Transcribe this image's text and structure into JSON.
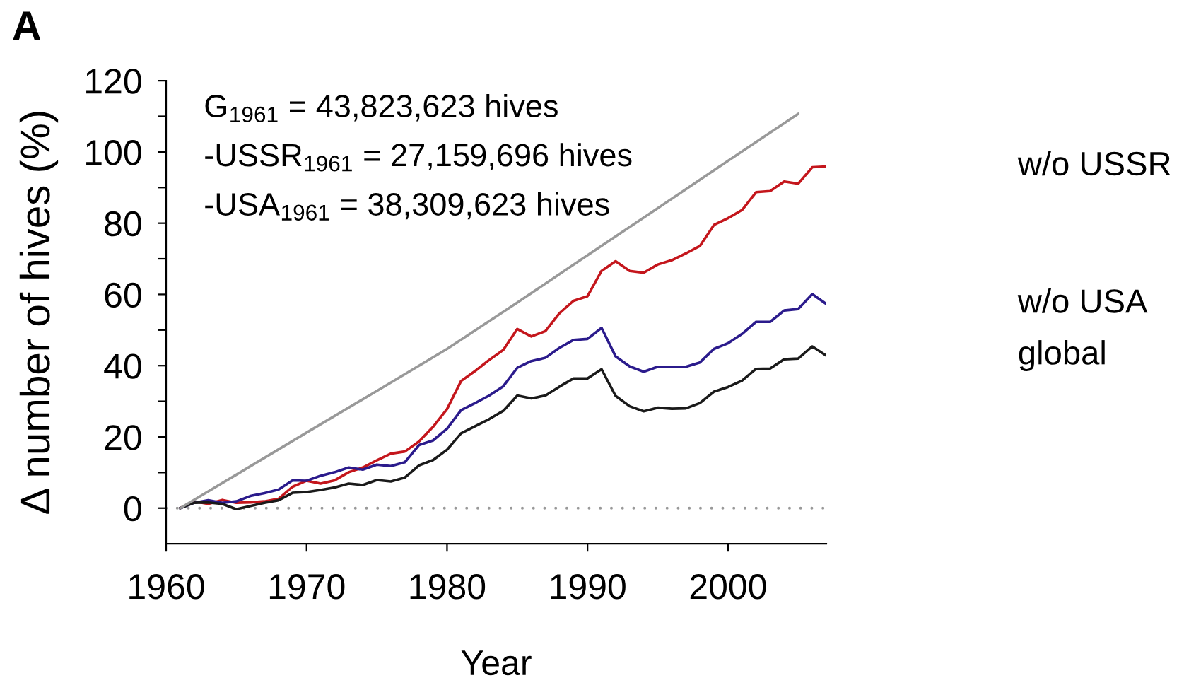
{
  "chart_data": {
    "type": "line",
    "title": "A",
    "xlabel": "Year",
    "ylabel": "Δ number of hives (%)",
    "x": [
      1961,
      1962,
      1963,
      1964,
      1965,
      1966,
      1967,
      1968,
      1969,
      1970,
      1971,
      1972,
      1973,
      1974,
      1975,
      1976,
      1977,
      1978,
      1979,
      1980,
      1981,
      1982,
      1983,
      1984,
      1985,
      1986,
      1987,
      1988,
      1989,
      1990,
      1991,
      1992,
      1993,
      1994,
      1995,
      1996,
      1997,
      1998,
      1999,
      2000,
      2001,
      2002,
      2003,
      2004,
      2005,
      2006,
      2007
    ],
    "series": [
      {
        "name": "w/o USSR",
        "color": "#c4161c",
        "values": [
          0,
          1.9,
          1.2,
          2.3,
          1.5,
          1.6,
          1.9,
          2.6,
          6.0,
          7.7,
          6.9,
          7.8,
          10.1,
          11.4,
          13.4,
          15.3,
          15.9,
          18.7,
          22.8,
          27.8,
          35.7,
          38.5,
          41.6,
          44.4,
          50.3,
          48.2,
          49.7,
          54.7,
          58.2,
          59.5,
          66.6,
          69.3,
          66.6,
          66.1,
          68.4,
          69.6,
          71.5,
          73.6,
          79.5,
          81.4,
          83.7,
          88.7,
          89.0,
          91.7,
          91.1,
          95.7,
          95.9
        ]
      },
      {
        "name": "w/o USA",
        "color": "#2b1b8c",
        "values": [
          0,
          1.5,
          2.2,
          1.5,
          1.9,
          3.4,
          4.2,
          5.2,
          7.8,
          7.7,
          9.1,
          10.1,
          11.4,
          10.8,
          12.2,
          11.8,
          12.9,
          17.7,
          19.0,
          22.3,
          27.5,
          29.5,
          31.6,
          34.2,
          39.4,
          41.3,
          42.2,
          45.0,
          47.2,
          47.5,
          50.6,
          42.6,
          39.8,
          38.3,
          39.7,
          39.7,
          39.7,
          40.9,
          44.7,
          46.3,
          48.9,
          52.3,
          52.3,
          55.5,
          55.9,
          60.1,
          57.3
        ]
      },
      {
        "name": "global",
        "color": "#1a1a1a",
        "values": [
          0,
          1.5,
          1.6,
          1.2,
          -0.3,
          0.6,
          1.5,
          2.2,
          4.3,
          4.5,
          5.1,
          5.8,
          6.9,
          6.5,
          7.9,
          7.5,
          8.6,
          12.0,
          13.5,
          16.4,
          21.0,
          23.0,
          25.0,
          27.3,
          31.6,
          30.8,
          31.6,
          34.1,
          36.4,
          36.4,
          39.0,
          31.5,
          28.6,
          27.2,
          28.2,
          27.9,
          28.0,
          29.5,
          32.7,
          34.0,
          35.8,
          39.1,
          39.2,
          41.8,
          42.0,
          45.4,
          42.8
        ]
      },
      {
        "color": "#999999",
        "x": [
          1961,
          1965,
          1970,
          1975,
          1980,
          1985,
          1990,
          1995,
          2000,
          2005
        ],
        "values": [
          0,
          9.4,
          21.2,
          32.9,
          44.7,
          57.7,
          71.0,
          84.2,
          97.5,
          110.7
        ]
      }
    ],
    "xlim": [
      1960,
      2007
    ],
    "ylim": [
      -10,
      120
    ],
    "xticks": [
      1960,
      1970,
      1980,
      1990,
      2000
    ],
    "yticks": [
      0,
      {
        "value": 10,
        "label": null
      },
      20,
      {
        "value": 30,
        "label": null
      },
      40,
      {
        "value": 50,
        "label": null
      },
      60,
      {
        "value": 70,
        "label": null
      },
      80,
      {
        "value": 90,
        "label": null
      },
      100,
      {
        "value": 110,
        "label": null
      },
      120
    ],
    "ref_lines": [
      {
        "axis": "y",
        "value": 0,
        "color": "#999999",
        "line_style": "dotted"
      }
    ],
    "annotations": [
      "G$_{1961}$ = 43,823,623 hives",
      "-USSR$_{1961}$ = 27,159,696 hives",
      "-USA$_{1961}$ = 38,309,623 hives"
    ],
    "grid": false,
    "legend": false,
    "marker": "none",
    "line_style": "solid"
  }
}
